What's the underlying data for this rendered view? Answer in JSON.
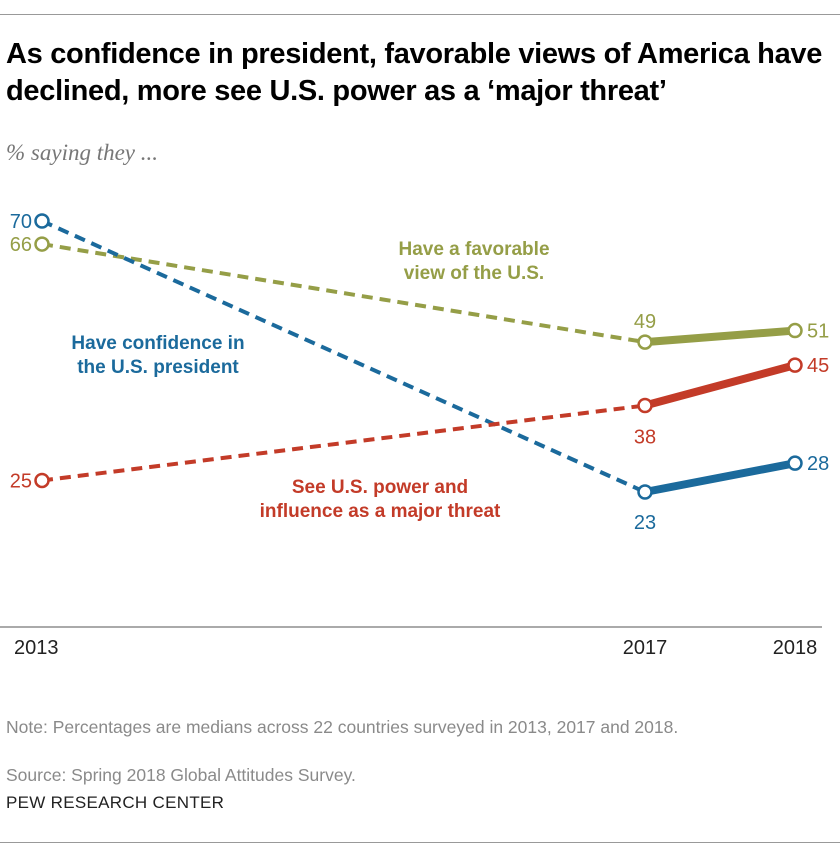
{
  "title": "As confidence in president, favorable views of America have declined, more see U.S. power as a ‘major threat’",
  "subtitle": "% saying they ...",
  "chart_data": {
    "type": "line",
    "x": [
      "2013",
      "2017",
      "2018"
    ],
    "x_values": [
      2013,
      2017,
      2018
    ],
    "ylim": [
      0,
      70
    ],
    "grid": false,
    "series": [
      {
        "name": "Have a favorable view of the U.S.",
        "label_lines": [
          "Have a favorable",
          "view of the U.S."
        ],
        "color": "#959e47",
        "values": [
          66,
          49,
          51
        ],
        "dashed_segment": "2013-2017"
      },
      {
        "name": "Have confidence in the U.S. president",
        "label_lines": [
          "Have confidence in",
          "the U.S. president"
        ],
        "color": "#1b6a9c",
        "values": [
          70,
          23,
          28
        ],
        "dashed_segment": "2013-2017"
      },
      {
        "name": "See U.S. power and influence as a major threat",
        "label_lines": [
          "See U.S. power and",
          "influence as a major threat"
        ],
        "color": "#c33b28",
        "values": [
          25,
          38,
          45
        ],
        "dashed_segment": "2013-2017"
      }
    ]
  },
  "note": "Note: Percentages are medians across 22 countries surveyed in 2013, 2017 and 2018.",
  "source": "Source: Spring 2018 Global Attitudes Survey.",
  "brand": "PEW RESEARCH CENTER"
}
